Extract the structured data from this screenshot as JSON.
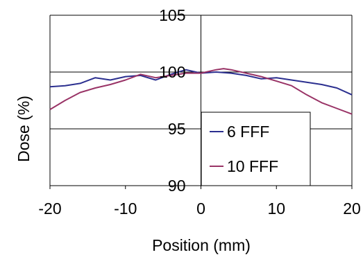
{
  "chart_data": {
    "type": "line",
    "xlabel": "Position (mm)",
    "ylabel": "Dose (%)",
    "xlim": [
      -20,
      20
    ],
    "ylim": [
      90,
      105
    ],
    "x_ticks": [
      -20,
      -10,
      0,
      10,
      20
    ],
    "y_ticks": [
      90,
      95,
      100,
      105
    ],
    "grid": "horizontal",
    "legend_position": "bottom-right",
    "series": [
      {
        "name": "6 FFF",
        "color": "#2b2f8f",
        "x": [
          -20,
          -18,
          -16,
          -14,
          -12,
          -10,
          -8,
          -6,
          -4,
          -2,
          0,
          2,
          4,
          6,
          8,
          10,
          12,
          14,
          16,
          18,
          20
        ],
        "y": [
          98.7,
          98.8,
          99.0,
          99.5,
          99.3,
          99.6,
          99.7,
          99.3,
          99.8,
          100.2,
          99.9,
          100.0,
          99.9,
          99.7,
          99.4,
          99.5,
          99.3,
          99.1,
          98.9,
          98.6,
          98.0
        ]
      },
      {
        "name": "10 FFF",
        "color": "#993366",
        "x": [
          -20,
          -18,
          -16,
          -14,
          -12,
          -10,
          -8,
          -6,
          -4,
          -2,
          0,
          2,
          3,
          4,
          6,
          8,
          10,
          12,
          14,
          16,
          18,
          20
        ],
        "y": [
          96.7,
          97.5,
          98.2,
          98.6,
          98.9,
          99.3,
          99.8,
          99.5,
          99.7,
          99.9,
          99.9,
          100.2,
          100.3,
          100.2,
          99.9,
          99.6,
          99.2,
          98.8,
          98.0,
          97.3,
          96.8,
          96.3
        ]
      }
    ]
  }
}
